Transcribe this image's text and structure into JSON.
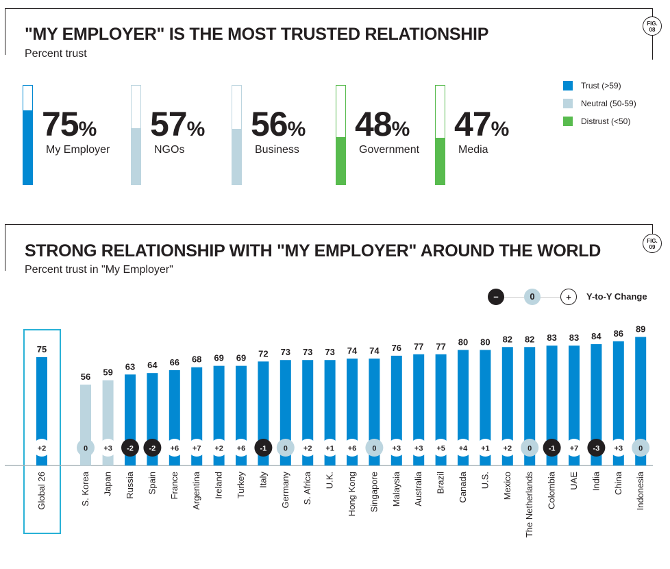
{
  "fig08": {
    "badge": [
      "FIG.",
      "08"
    ],
    "title": "\"MY EMPLOYER\" IS THE MOST TRUSTED RELATIONSHIP",
    "subtitle": "Percent trust"
  },
  "fig09": {
    "badge": [
      "FIG.",
      "09"
    ],
    "title": "STRONG RELATIONSHIP WITH \"MY EMPLOYER\" AROUND THE WORLD",
    "subtitle": "Percent trust in \"My Employer\""
  },
  "legend": [
    {
      "label": "Trust (>59)",
      "color": "#0289d2"
    },
    {
      "label": "Neutral (50-59)",
      "color": "#bcd5df"
    },
    {
      "label": "Distrust (<50)",
      "color": "#58bb4e"
    }
  ],
  "yoy_legend": {
    "minus": "–",
    "zero": "0",
    "plus": "+",
    "label": "Y-to-Y Change"
  },
  "chart_data": [
    {
      "type": "bar",
      "title": "\"MY EMPLOYER\" IS THE MOST TRUSTED RELATIONSHIP",
      "subtitle": "Percent trust",
      "unit": "%",
      "ylim": [
        0,
        100
      ],
      "categories": [
        "My Employer",
        "NGOs",
        "Business",
        "Government",
        "Media"
      ],
      "values": [
        75,
        57,
        56,
        48,
        47
      ],
      "status": [
        "trust",
        "neutral",
        "neutral",
        "distrust",
        "distrust"
      ]
    },
    {
      "type": "bar",
      "title": "STRONG RELATIONSHIP WITH \"MY EMPLOYER\" AROUND THE WORLD",
      "subtitle": "Percent trust in \"My Employer\"",
      "ylim": [
        0,
        100
      ],
      "categories": [
        "Global 26",
        "S. Korea",
        "Japan",
        "Russia",
        "Spain",
        "France",
        "Argentina",
        "Ireland",
        "Turkey",
        "Italy",
        "Germany",
        "S. Africa",
        "U.K.",
        "Hong Kong",
        "Singapore",
        "Malaysia",
        "Australia",
        "Brazil",
        "Canada",
        "U.S.",
        "Mexico",
        "The Netherlands",
        "Colombia",
        "UAE",
        "India",
        "China",
        "Indonesia"
      ],
      "values": [
        75,
        56,
        59,
        63,
        64,
        66,
        68,
        69,
        69,
        72,
        73,
        73,
        73,
        74,
        74,
        76,
        77,
        77,
        80,
        80,
        82,
        82,
        83,
        83,
        84,
        86,
        89
      ],
      "yoy_change": [
        "+2",
        "0",
        "+3",
        "-2",
        "-2",
        "+6",
        "+7",
        "+2",
        "+6",
        "-1",
        "0",
        "+2",
        "+1",
        "+6",
        "0",
        "+3",
        "+3",
        "+5",
        "+4",
        "+1",
        "+2",
        "0",
        "-1",
        "+7",
        "-3",
        "+3",
        "0"
      ],
      "highlight": "Global 26"
    }
  ]
}
